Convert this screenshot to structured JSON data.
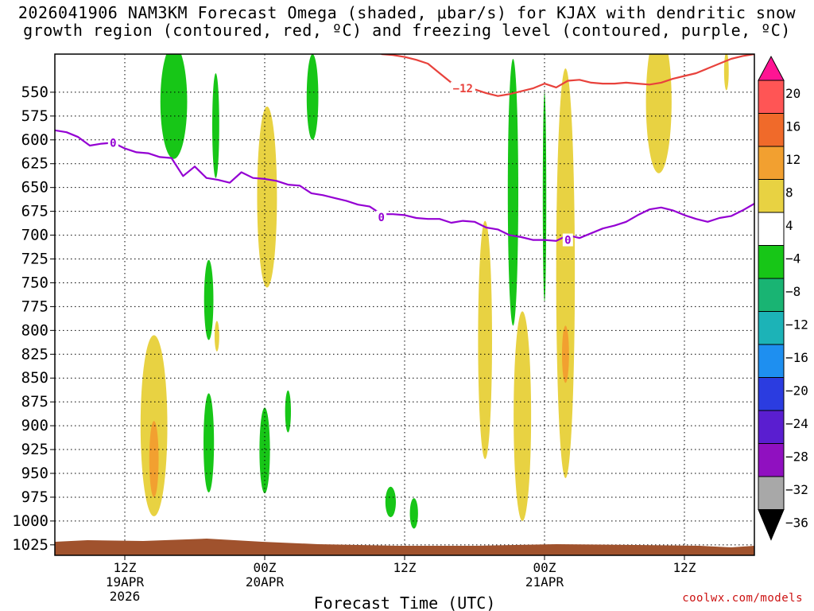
{
  "chart_data": {
    "type": "time-height",
    "title_line1": "2026041906 NAM3KM Forecast Omega (shaded, μbar/s) for KJAX with dendritic snow",
    "title_line2": "growth region (contoured, red, ºC) and freezing level (contoured, purple, ºC)",
    "xlabel": "Forecast Time (UTC)",
    "x_range_hours": [
      0,
      60
    ],
    "y_levels": [
      550,
      575,
      600,
      625,
      650,
      675,
      700,
      725,
      750,
      775,
      800,
      825,
      850,
      875,
      900,
      925,
      950,
      975,
      1000,
      1025
    ],
    "y_range": [
      510,
      1036
    ],
    "time_ticks": [
      {
        "hour": 6,
        "line1": "12Z",
        "line2": "19APR",
        "line3": "2026"
      },
      {
        "hour": 18,
        "line1": "00Z",
        "line2": "20APR",
        "line3": ""
      },
      {
        "hour": 30,
        "line1": "12Z",
        "line2": "",
        "line3": ""
      },
      {
        "hour": 42,
        "line1": "00Z",
        "line2": "21APR",
        "line3": ""
      },
      {
        "hour": 54,
        "line1": "12Z",
        "line2": "",
        "line3": ""
      }
    ],
    "colorbar": {
      "labels": [
        "20",
        "16",
        "12",
        "8",
        "4",
        "−4",
        "−8",
        "−12",
        "−16",
        "−20",
        "−24",
        "−28",
        "−32",
        "−36"
      ],
      "colors": [
        "#ff5555",
        "#f06a2a",
        "#f2a030",
        "#e8d242",
        "#ffffff",
        "#17c617",
        "#19b473",
        "#1cb3b7",
        "#1e8ff0",
        "#2b3ce0",
        "#5a1ed0",
        "#9010c0",
        "#a8a8a8"
      ],
      "top_color": "#ff1493",
      "bottom_color": "#000000"
    },
    "contours": {
      "freezing_level": {
        "label": "0",
        "color": "#9400d3",
        "label_points": [
          {
            "hour": 5,
            "p": 603
          },
          {
            "hour": 28,
            "p": 681
          },
          {
            "hour": 44,
            "p": 705
          }
        ],
        "hours": [
          0,
          1,
          2,
          3,
          4,
          5,
          6,
          7,
          8,
          9,
          10,
          11,
          12,
          13,
          14,
          15,
          16,
          17,
          18,
          19,
          20,
          21,
          22,
          23,
          24,
          25,
          26,
          27,
          28,
          29,
          30,
          31,
          32,
          33,
          34,
          35,
          36,
          37,
          38,
          39,
          40,
          41,
          42,
          43,
          44,
          45,
          46,
          47,
          48,
          49,
          50,
          51,
          52,
          53,
          54,
          55,
          56,
          57,
          58,
          59,
          60
        ],
        "pressures": [
          590,
          592,
          597,
          606,
          604,
          603,
          609,
          613,
          614,
          618,
          619,
          638,
          628,
          640,
          642,
          645,
          634,
          640,
          641,
          643,
          647,
          648,
          656,
          658,
          661,
          664,
          668,
          670,
          678,
          678,
          679,
          682,
          683,
          683,
          687,
          685,
          686,
          692,
          694,
          700,
          702,
          705,
          705,
          706,
          700,
          703,
          698,
          693,
          690,
          686,
          679,
          673,
          671,
          674,
          679,
          683,
          686,
          682,
          680,
          674,
          667
        ]
      },
      "dendritic": {
        "label": "−12",
        "color": "#e8423c",
        "label_points": [
          {
            "hour": 35,
            "p": 546
          }
        ],
        "hours": [
          28,
          29,
          30,
          31,
          32,
          33,
          34,
          35,
          36,
          37,
          38,
          39,
          40,
          41,
          42,
          43,
          44,
          45,
          46,
          47,
          48,
          49,
          50,
          51,
          52,
          53,
          54,
          55,
          56,
          57,
          58,
          59,
          60
        ],
        "pressures": [
          510,
          511,
          513,
          516,
          520,
          530,
          540,
          545,
          547,
          551,
          554,
          552,
          549,
          546,
          541,
          545,
          538,
          537,
          540,
          541,
          541,
          540,
          541,
          542,
          540,
          536,
          533,
          530,
          525,
          520,
          515,
          512,
          510
        ]
      }
    },
    "omega_blobs": [
      {
        "t": 10.2,
        "p": 560,
        "dt": 1.15,
        "dp": 60,
        "color": "#17c617"
      },
      {
        "t": 13.8,
        "p": 585,
        "dt": 0.3,
        "dp": 55,
        "color": "#17c617"
      },
      {
        "t": 22.1,
        "p": 555,
        "dt": 0.5,
        "dp": 45,
        "color": "#17c617"
      },
      {
        "t": 18.2,
        "p": 660,
        "dt": 0.85,
        "dp": 95,
        "color": "#e8d242"
      },
      {
        "t": 7.6,
        "p": 870,
        "dt": 0.12,
        "dp": 22,
        "color": "#17c617"
      },
      {
        "t": 8.5,
        "p": 900,
        "dt": 1.15,
        "dp": 95,
        "color": "#e8d242"
      },
      {
        "t": 13.2,
        "p": 768,
        "dt": 0.4,
        "dp": 42,
        "color": "#17c617"
      },
      {
        "t": 13.9,
        "p": 806,
        "dt": 0.2,
        "dp": 16,
        "color": "#e8d242"
      },
      {
        "t": 13.2,
        "p": 918,
        "dt": 0.45,
        "dp": 52,
        "color": "#17c617"
      },
      {
        "t": 18.0,
        "p": 926,
        "dt": 0.45,
        "dp": 45,
        "color": "#17c617"
      },
      {
        "t": 20.0,
        "p": 885,
        "dt": 0.25,
        "dp": 22,
        "color": "#17c617"
      },
      {
        "t": 28.8,
        "p": 980,
        "dt": 0.45,
        "dp": 16,
        "color": "#17c617"
      },
      {
        "t": 30.8,
        "p": 992,
        "dt": 0.35,
        "dp": 16,
        "color": "#17c617"
      },
      {
        "t": 36.9,
        "p": 810,
        "dt": 0.6,
        "dp": 125,
        "color": "#e8d242"
      },
      {
        "t": 40.1,
        "p": 890,
        "dt": 0.75,
        "dp": 110,
        "color": "#e8d242"
      },
      {
        "t": 39.3,
        "p": 655,
        "dt": 0.45,
        "dp": 140,
        "color": "#17c617"
      },
      {
        "t": 42.0,
        "p": 660,
        "dt": 0.15,
        "dp": 110,
        "color": "#17c617"
      },
      {
        "t": 43.8,
        "p": 740,
        "dt": 0.8,
        "dp": 215,
        "color": "#e8d242"
      },
      {
        "t": 51.8,
        "p": 560,
        "dt": 1.1,
        "dp": 75,
        "color": "#e8d242"
      },
      {
        "t": 57.6,
        "p": 528,
        "dt": 0.2,
        "dp": 20,
        "color": "#e8d242"
      }
    ],
    "terrain_color": "#a0522d"
  },
  "footer": {
    "credit": "coolwx.com/models"
  }
}
